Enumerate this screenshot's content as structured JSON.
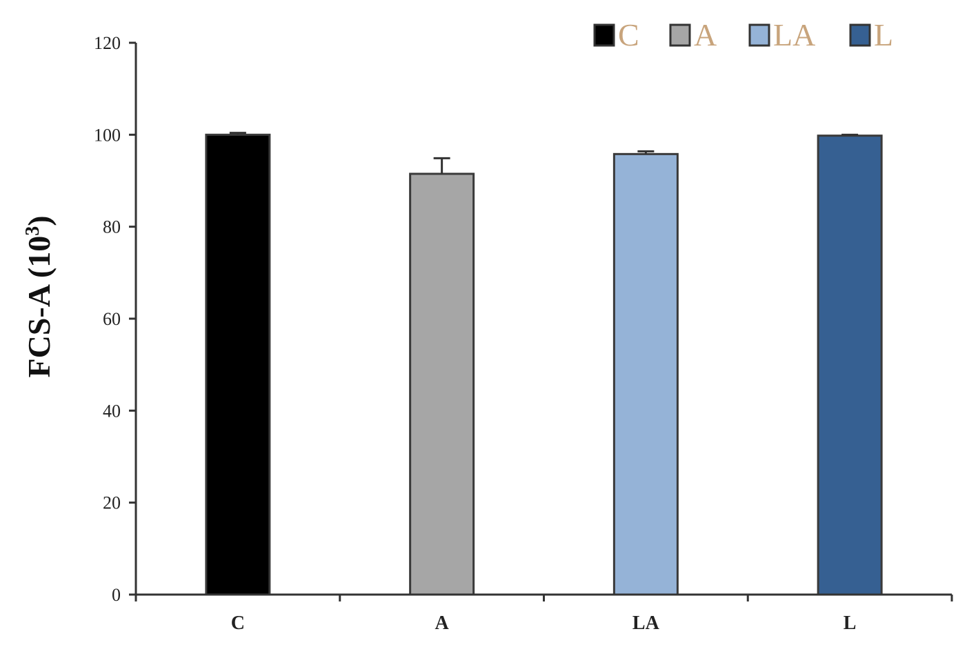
{
  "chart_data": {
    "type": "bar",
    "categories": [
      "C",
      "A",
      "LA",
      "L"
    ],
    "values": [
      100,
      91.5,
      95.8,
      99.8
    ],
    "errors": [
      0.4,
      3.4,
      0.6,
      0.2
    ],
    "colors": [
      "#000000",
      "#a6a6a6",
      "#95b3d7",
      "#366092"
    ],
    "legend": [
      "C",
      "A",
      "LA",
      "L"
    ],
    "legend_position": "top-right",
    "ylabel_main": "FCS-A (10",
    "ylabel_sup": "3",
    "ylabel_end": ")",
    "ylim": [
      0,
      120
    ],
    "yticks": [
      "0",
      "20",
      "40",
      "60",
      "80",
      "100",
      "120"
    ],
    "grid": false
  }
}
